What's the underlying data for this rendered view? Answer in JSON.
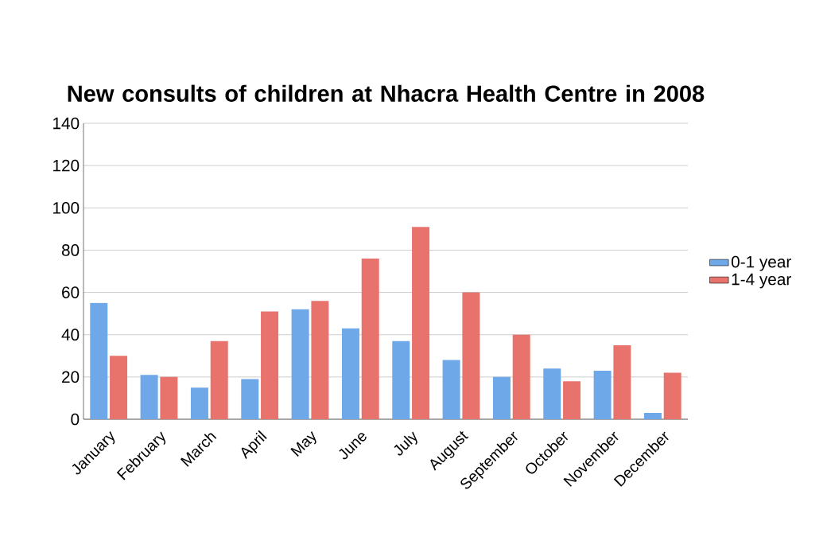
{
  "chart_data": {
    "type": "bar",
    "title": "New consults of children at Nhacra Health Centre in 2008",
    "categories": [
      "January",
      "February",
      "March",
      "April",
      "May",
      "June",
      "July",
      "August",
      "September",
      "October",
      "November",
      "December"
    ],
    "series": [
      {
        "name": "0-1 year",
        "color": "#6fa8e8",
        "values": [
          55,
          21,
          15,
          19,
          52,
          43,
          37,
          28,
          20,
          24,
          23,
          3
        ]
      },
      {
        "name": "1-4 year",
        "color": "#e8736c",
        "values": [
          30,
          20,
          37,
          51,
          56,
          76,
          91,
          60,
          40,
          18,
          35,
          22
        ]
      }
    ],
    "ylim": [
      0,
      140
    ],
    "yticks": [
      0,
      20,
      40,
      60,
      80,
      100,
      120,
      140
    ],
    "grid": "y",
    "legend": "right"
  }
}
